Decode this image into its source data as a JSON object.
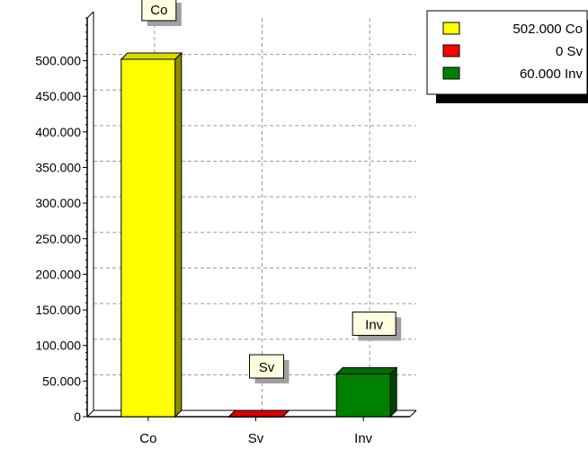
{
  "chart_data": {
    "type": "bar",
    "categories": [
      "Co",
      "Sv",
      "Inv"
    ],
    "values": [
      502,
      0,
      60
    ],
    "colors": [
      "#ffff00",
      "#ff0000",
      "#008000"
    ],
    "bar_labels": [
      "Co",
      "Sv",
      "Inv"
    ],
    "yticks": [
      "0",
      "50.000",
      "100.000",
      "150.000",
      "200.000",
      "250.000",
      "300.000",
      "350.000",
      "400.000",
      "450.000",
      "500.000"
    ],
    "ylim": [
      0,
      560
    ],
    "grid": true,
    "legend": {
      "placement": "top-right",
      "entries": [
        {
          "text": "502.000 Co",
          "color": "#ffff00"
        },
        {
          "text": "0 Sv",
          "color": "#ff0000"
        },
        {
          "text": "60.000 Inv",
          "color": "#008000"
        }
      ]
    }
  }
}
